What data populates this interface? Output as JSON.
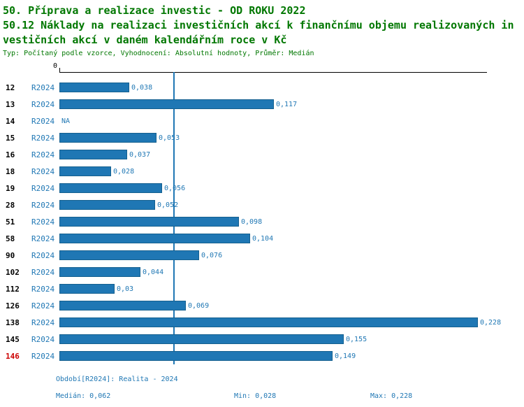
{
  "title": {
    "line1": "50. Příprava a realizace investic - OD ROKU 2022",
    "line2": "50.12 Náklady na realizaci investičních akcí k finančnímu objemu realizovaných in",
    "line3": "vestičních akcí v daném kalendářním roce v Kč",
    "subtitle": "Typ: Počítaný podle vzorce, Vyhodnocení: Absolutní hodnoty, Průměr: Medián"
  },
  "chart_data": {
    "type": "bar",
    "orientation": "horizontal",
    "title": "50.12 Náklady na realizaci investičních akcí k finančnímu objemu realizovaných investičních akcí v daném kalendářním roce v Kč",
    "series_name": "R2024",
    "x_axis_zero_label": "0",
    "xlim": [
      0,
      0.233
    ],
    "median_line": 0.062,
    "categories": [
      "12",
      "13",
      "14",
      "15",
      "16",
      "18",
      "19",
      "28",
      "51",
      "58",
      "90",
      "102",
      "112",
      "126",
      "138",
      "145",
      "146"
    ],
    "values": [
      0.038,
      0.117,
      null,
      0.053,
      0.037,
      0.028,
      0.056,
      0.052,
      0.098,
      0.104,
      0.076,
      0.044,
      0.03,
      0.069,
      0.228,
      0.155,
      0.149
    ],
    "rows": [
      {
        "category": "12",
        "period": "R2024",
        "value": 0.038,
        "label": "0,038",
        "highlight": false
      },
      {
        "category": "13",
        "period": "R2024",
        "value": 0.117,
        "label": "0,117",
        "highlight": false
      },
      {
        "category": "14",
        "period": "R2024",
        "value": null,
        "label": "NA",
        "highlight": false
      },
      {
        "category": "15",
        "period": "R2024",
        "value": 0.053,
        "label": "0,053",
        "highlight": false
      },
      {
        "category": "16",
        "period": "R2024",
        "value": 0.037,
        "label": "0,037",
        "highlight": false
      },
      {
        "category": "18",
        "period": "R2024",
        "value": 0.028,
        "label": "0,028",
        "highlight": false
      },
      {
        "category": "19",
        "period": "R2024",
        "value": 0.056,
        "label": "0,056",
        "highlight": false
      },
      {
        "category": "28",
        "period": "R2024",
        "value": 0.052,
        "label": "0,052",
        "highlight": false
      },
      {
        "category": "51",
        "period": "R2024",
        "value": 0.098,
        "label": "0,098",
        "highlight": false
      },
      {
        "category": "58",
        "period": "R2024",
        "value": 0.104,
        "label": "0,104",
        "highlight": false
      },
      {
        "category": "90",
        "period": "R2024",
        "value": 0.076,
        "label": "0,076",
        "highlight": false
      },
      {
        "category": "102",
        "period": "R2024",
        "value": 0.044,
        "label": "0,044",
        "highlight": false
      },
      {
        "category": "112",
        "period": "R2024",
        "value": 0.03,
        "label": "0,03",
        "highlight": false
      },
      {
        "category": "126",
        "period": "R2024",
        "value": 0.069,
        "label": "0,069",
        "highlight": false
      },
      {
        "category": "138",
        "period": "R2024",
        "value": 0.228,
        "label": "0,228",
        "highlight": false
      },
      {
        "category": "145",
        "period": "R2024",
        "value": 0.155,
        "label": "0,155",
        "highlight": false
      },
      {
        "category": "146",
        "period": "R2024",
        "value": 0.149,
        "label": "0,149",
        "highlight": true
      }
    ],
    "stats": {
      "median": 0.062,
      "min": 0.028,
      "max": 0.228
    }
  },
  "footer": {
    "period": "Období[R2024]: Realita - 2024",
    "median": "Medián: 0,062",
    "min": "Min: 0,028",
    "max": "Max: 0,228"
  },
  "colors": {
    "title_green": "#007700",
    "bar_blue": "#1f77b4",
    "text_blue": "#1f77b4",
    "median_line": "#1f77b4",
    "highlight_red": "#cc0000"
  }
}
